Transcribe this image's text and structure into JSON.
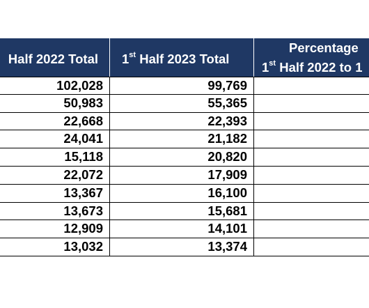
{
  "table": {
    "headers": {
      "col1": "Half 2022 Total",
      "col2_sup": "st",
      "col2_num": "1",
      "col2_rest": " Half 2023 Total",
      "col3_line1": "Percentage",
      "col3_line2_num": "1",
      "col3_line2_sup": "st",
      "col3_line2_rest": " Half 2022 to 1"
    },
    "rows": [
      {
        "h1_2022": "102,028",
        "h1_2023": "99,769",
        "pct": ""
      },
      {
        "h1_2022": "50,983",
        "h1_2023": "55,365",
        "pct": ""
      },
      {
        "h1_2022": "22,668",
        "h1_2023": "22,393",
        "pct": ""
      },
      {
        "h1_2022": "24,041",
        "h1_2023": "21,182",
        "pct": ""
      },
      {
        "h1_2022": "15,118",
        "h1_2023": "20,820",
        "pct": ""
      },
      {
        "h1_2022": "22,072",
        "h1_2023": "17,909",
        "pct": ""
      },
      {
        "h1_2022": "13,367",
        "h1_2023": "16,100",
        "pct": ""
      },
      {
        "h1_2022": "13,673",
        "h1_2023": "15,681",
        "pct": ""
      },
      {
        "h1_2022": "12,909",
        "h1_2023": "14,101",
        "pct": ""
      },
      {
        "h1_2022": "13,032",
        "h1_2023": "13,374",
        "pct": ""
      }
    ]
  },
  "colors": {
    "header_bg": "#1f3864",
    "header_text": "#ffffff",
    "grid": "#000000"
  }
}
